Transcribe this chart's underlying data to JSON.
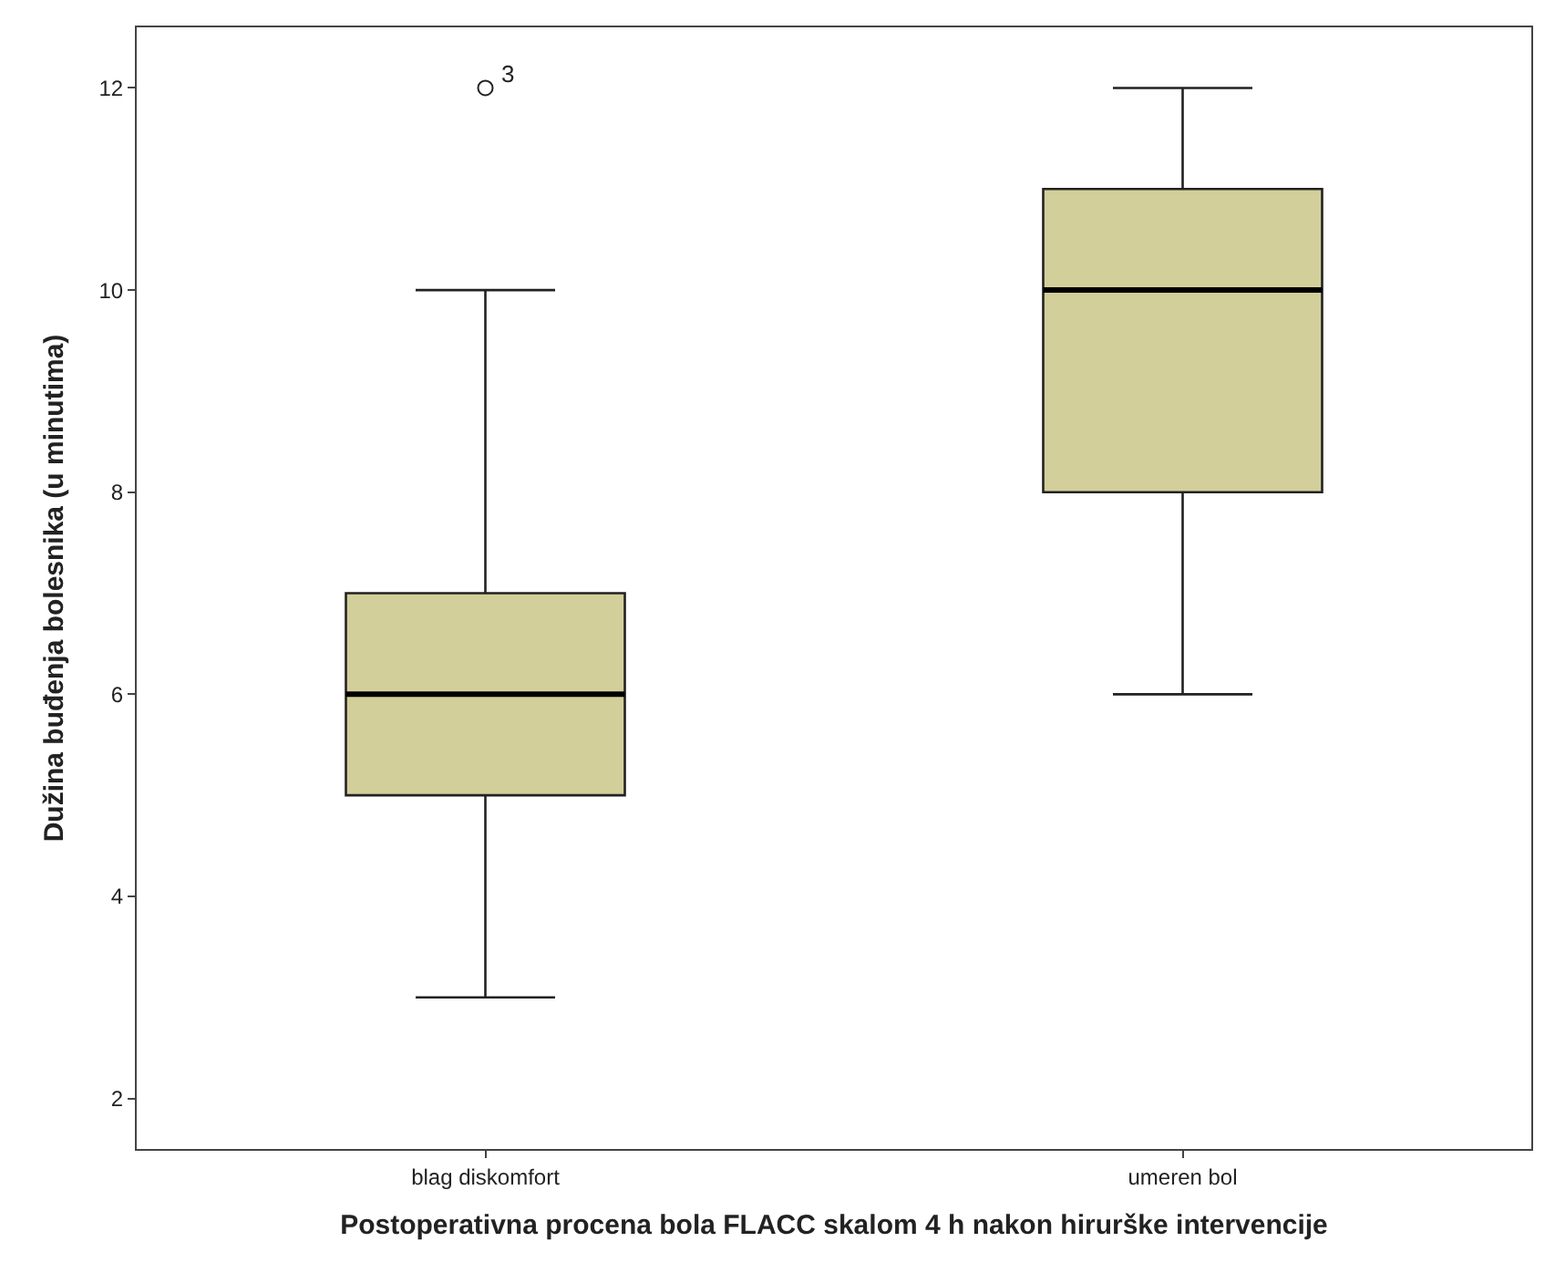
{
  "chart_data": {
    "type": "box",
    "xlabel": "Postoperativna procena bola FLACC skalom 4 h nakon hirurške intervencije",
    "ylabel": "Dužina buđenja bolesnika (u minutima)",
    "categories": [
      "blag diskomfort",
      "umeren bol"
    ],
    "color": "#d3cf9a",
    "boxes": [
      {
        "low": 3,
        "q1": 5,
        "median": 6,
        "q3": 7,
        "high": 10,
        "outliers": [
          12
        ]
      },
      {
        "low": 6,
        "q1": 8,
        "median": 10,
        "q3": 11,
        "high": 12
      }
    ],
    "annotations": [
      "3"
    ],
    "ylim": [
      1.5,
      12.6
    ],
    "yticks": [
      2,
      4,
      6,
      8,
      10,
      12
    ]
  }
}
